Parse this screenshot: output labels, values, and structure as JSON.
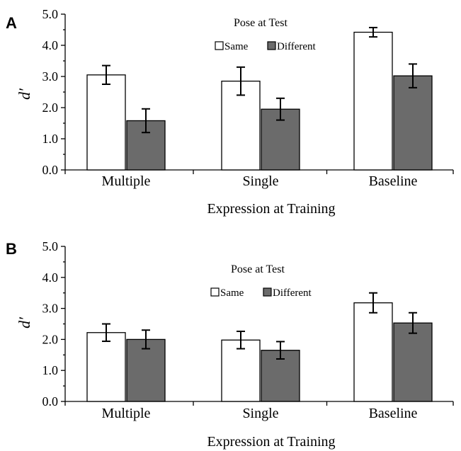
{
  "chart_data": [
    {
      "type": "bar",
      "panel": "A",
      "categories": [
        "Multiple",
        "Single",
        "Baseline"
      ],
      "series": [
        {
          "name": "Same",
          "values": [
            3.05,
            2.85,
            4.42
          ],
          "errors": [
            0.3,
            0.45,
            0.15
          ],
          "color": "#ffffff"
        },
        {
          "name": "Different",
          "values": [
            1.58,
            1.95,
            3.02
          ],
          "errors": [
            0.38,
            0.35,
            0.38
          ],
          "color": "#6b6b6b"
        }
      ],
      "xlabel": "Expression at Training",
      "ylabel": "d′",
      "ylim": [
        0,
        5
      ],
      "yticks": [
        "0.0",
        "1.0",
        "2.0",
        "3.0",
        "4.0",
        "5.0"
      ],
      "legend_title": "Pose at Test",
      "legend": "top-center",
      "grid": false
    },
    {
      "type": "bar",
      "panel": "B",
      "categories": [
        "Multiple",
        "Single",
        "Baseline"
      ],
      "series": [
        {
          "name": "Same",
          "values": [
            2.22,
            1.98,
            3.18
          ],
          "errors": [
            0.28,
            0.28,
            0.32
          ],
          "color": "#ffffff"
        },
        {
          "name": "Different",
          "values": [
            2.0,
            1.65,
            2.53
          ],
          "errors": [
            0.3,
            0.28,
            0.33
          ],
          "color": "#6b6b6b"
        }
      ],
      "xlabel": "Expression at Training",
      "ylabel": "d′",
      "ylim": [
        0,
        5
      ],
      "yticks": [
        "0.0",
        "1.0",
        "2.0",
        "3.0",
        "4.0",
        "5.0"
      ],
      "legend_title": "Pose at Test",
      "legend": "top-center",
      "grid": false
    }
  ]
}
